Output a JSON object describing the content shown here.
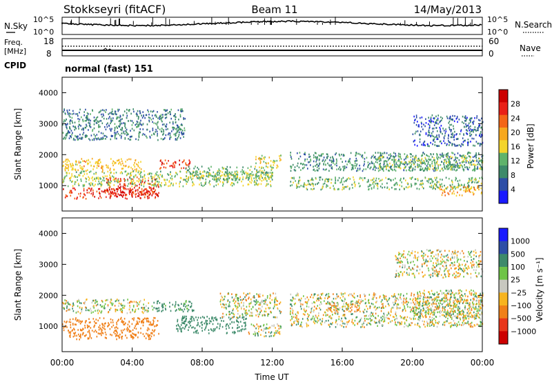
{
  "header": {
    "station": "Stokkseyri (fitACF)",
    "beam": "Beam 11",
    "date": "14/May/2013"
  },
  "panels": {
    "nsky_label": "N.Sky",
    "nsearch_label": "N.Search",
    "nsky_ticks": [
      "10^5",
      "10^0"
    ],
    "freq_label_1": "Freq.",
    "freq_label_2": "[MHz]",
    "freq_ticks": [
      "18",
      "8"
    ],
    "nave_label": "Nave",
    "nave_ticks": [
      "60",
      "0"
    ],
    "cpid_label": "CPID",
    "cpid_value": "normal (fast) 151"
  },
  "colors": {
    "power_scale": [
      "#1a1aff",
      "#2d4ea6",
      "#3d8a6a",
      "#5fb36b",
      "#f3d42c",
      "#f7a81f",
      "#f46617",
      "#e92017",
      "#cc0000"
    ],
    "velocity_scale": [
      "#1a1aff",
      "#2d4ea6",
      "#3d8a6a",
      "#6ec447",
      "#c8c8c0",
      "#f7b41f",
      "#f08019",
      "#e8361b",
      "#cc0000"
    ]
  },
  "chart_data": [
    {
      "type": "heatmap",
      "quantity": "Power",
      "xlabel": "Time UT",
      "ylabel": "Slant Range [km]",
      "x_ticks": [
        "00:00",
        "04:00",
        "08:00",
        "12:00",
        "16:00",
        "20:00",
        "00:00"
      ],
      "x_range_hours": [
        0,
        24
      ],
      "y_ticks": [
        1000,
        2000,
        3000,
        4000
      ],
      "ylim": [
        180,
        4500
      ],
      "colorbar_label": "Power [dB]",
      "colorbar_ticks": [
        4,
        8,
        12,
        16,
        20,
        24,
        28
      ],
      "colorbar_range": [
        0,
        32
      ],
      "scatter_regions": [
        {
          "t0": 0.0,
          "t1": 5.5,
          "r0": 600,
          "r1": 950,
          "value": 26
        },
        {
          "t0": 2.5,
          "t1": 5.5,
          "r0": 700,
          "r1": 1300,
          "value": 27
        },
        {
          "t0": 0.0,
          "t1": 4.5,
          "r0": 1500,
          "r1": 1900,
          "value": 18
        },
        {
          "t0": 5.5,
          "t1": 7.3,
          "r0": 1550,
          "r1": 1850,
          "value": 26
        },
        {
          "t0": 0.0,
          "t1": 12.0,
          "r0": 1000,
          "r1": 1500,
          "value": 14
        },
        {
          "t0": 7.0,
          "t1": 12.0,
          "r0": 1200,
          "r1": 1650,
          "value": 12
        },
        {
          "t0": 0.0,
          "t1": 7.0,
          "r0": 2500,
          "r1": 3500,
          "value": 8
        },
        {
          "t0": 11.0,
          "t1": 12.5,
          "r0": 1600,
          "r1": 2000,
          "value": 16
        },
        {
          "t0": 13.0,
          "t1": 24.0,
          "r0": 1500,
          "r1": 2100,
          "value": 9
        },
        {
          "t0": 13.0,
          "t1": 24.0,
          "r0": 900,
          "r1": 1300,
          "value": 12
        },
        {
          "t0": 18.0,
          "t1": 24.0,
          "r0": 1500,
          "r1": 2000,
          "value": 13
        },
        {
          "t0": 20.0,
          "t1": 24.0,
          "r0": 2300,
          "r1": 3300,
          "value": 6
        },
        {
          "t0": 21.5,
          "t1": 24.0,
          "r0": 700,
          "r1": 1000,
          "value": 20
        }
      ]
    },
    {
      "type": "heatmap",
      "quantity": "Velocity",
      "xlabel": "Time UT",
      "ylabel": "Slant Range [km]",
      "x_ticks": [
        "00:00",
        "04:00",
        "08:00",
        "12:00",
        "16:00",
        "20:00",
        "00:00"
      ],
      "x_range_hours": [
        0,
        24
      ],
      "y_ticks": [
        1000,
        2000,
        3000,
        4000
      ],
      "ylim": [
        180,
        4500
      ],
      "colorbar_label": "Velocity [m s⁻¹]",
      "colorbar_ticks": [
        "1000",
        "500",
        "100",
        "25",
        "−25",
        "−100",
        "−500",
        "−1000"
      ],
      "scatter_regions": [
        {
          "t0": 0.0,
          "t1": 5.5,
          "r0": 600,
          "r1": 1300,
          "value": -300
        },
        {
          "t0": 0.0,
          "t1": 5.0,
          "r0": 1450,
          "r1": 1900,
          "value": 0
        },
        {
          "t0": 5.0,
          "t1": 7.5,
          "r0": 1500,
          "r1": 1850,
          "value": 200
        },
        {
          "t0": 6.5,
          "t1": 10.5,
          "r0": 800,
          "r1": 1350,
          "value": 300
        },
        {
          "t0": 9.0,
          "t1": 12.5,
          "r0": 1300,
          "r1": 2100,
          "value": 0
        },
        {
          "t0": 10.5,
          "t1": 12.5,
          "r0": 700,
          "r1": 1100,
          "value": 0
        },
        {
          "t0": 13.0,
          "t1": 24.0,
          "r0": 1000,
          "r1": 2100,
          "value": 0
        },
        {
          "t0": 15.0,
          "t1": 17.0,
          "r0": 1500,
          "r1": 1800,
          "value": -100
        },
        {
          "t0": 20.0,
          "t1": 24.0,
          "r0": 1300,
          "r1": 2200,
          "value": 0
        },
        {
          "t0": 19.0,
          "t1": 24.0,
          "r0": 2600,
          "r1": 3500,
          "value": 0
        }
      ]
    }
  ]
}
